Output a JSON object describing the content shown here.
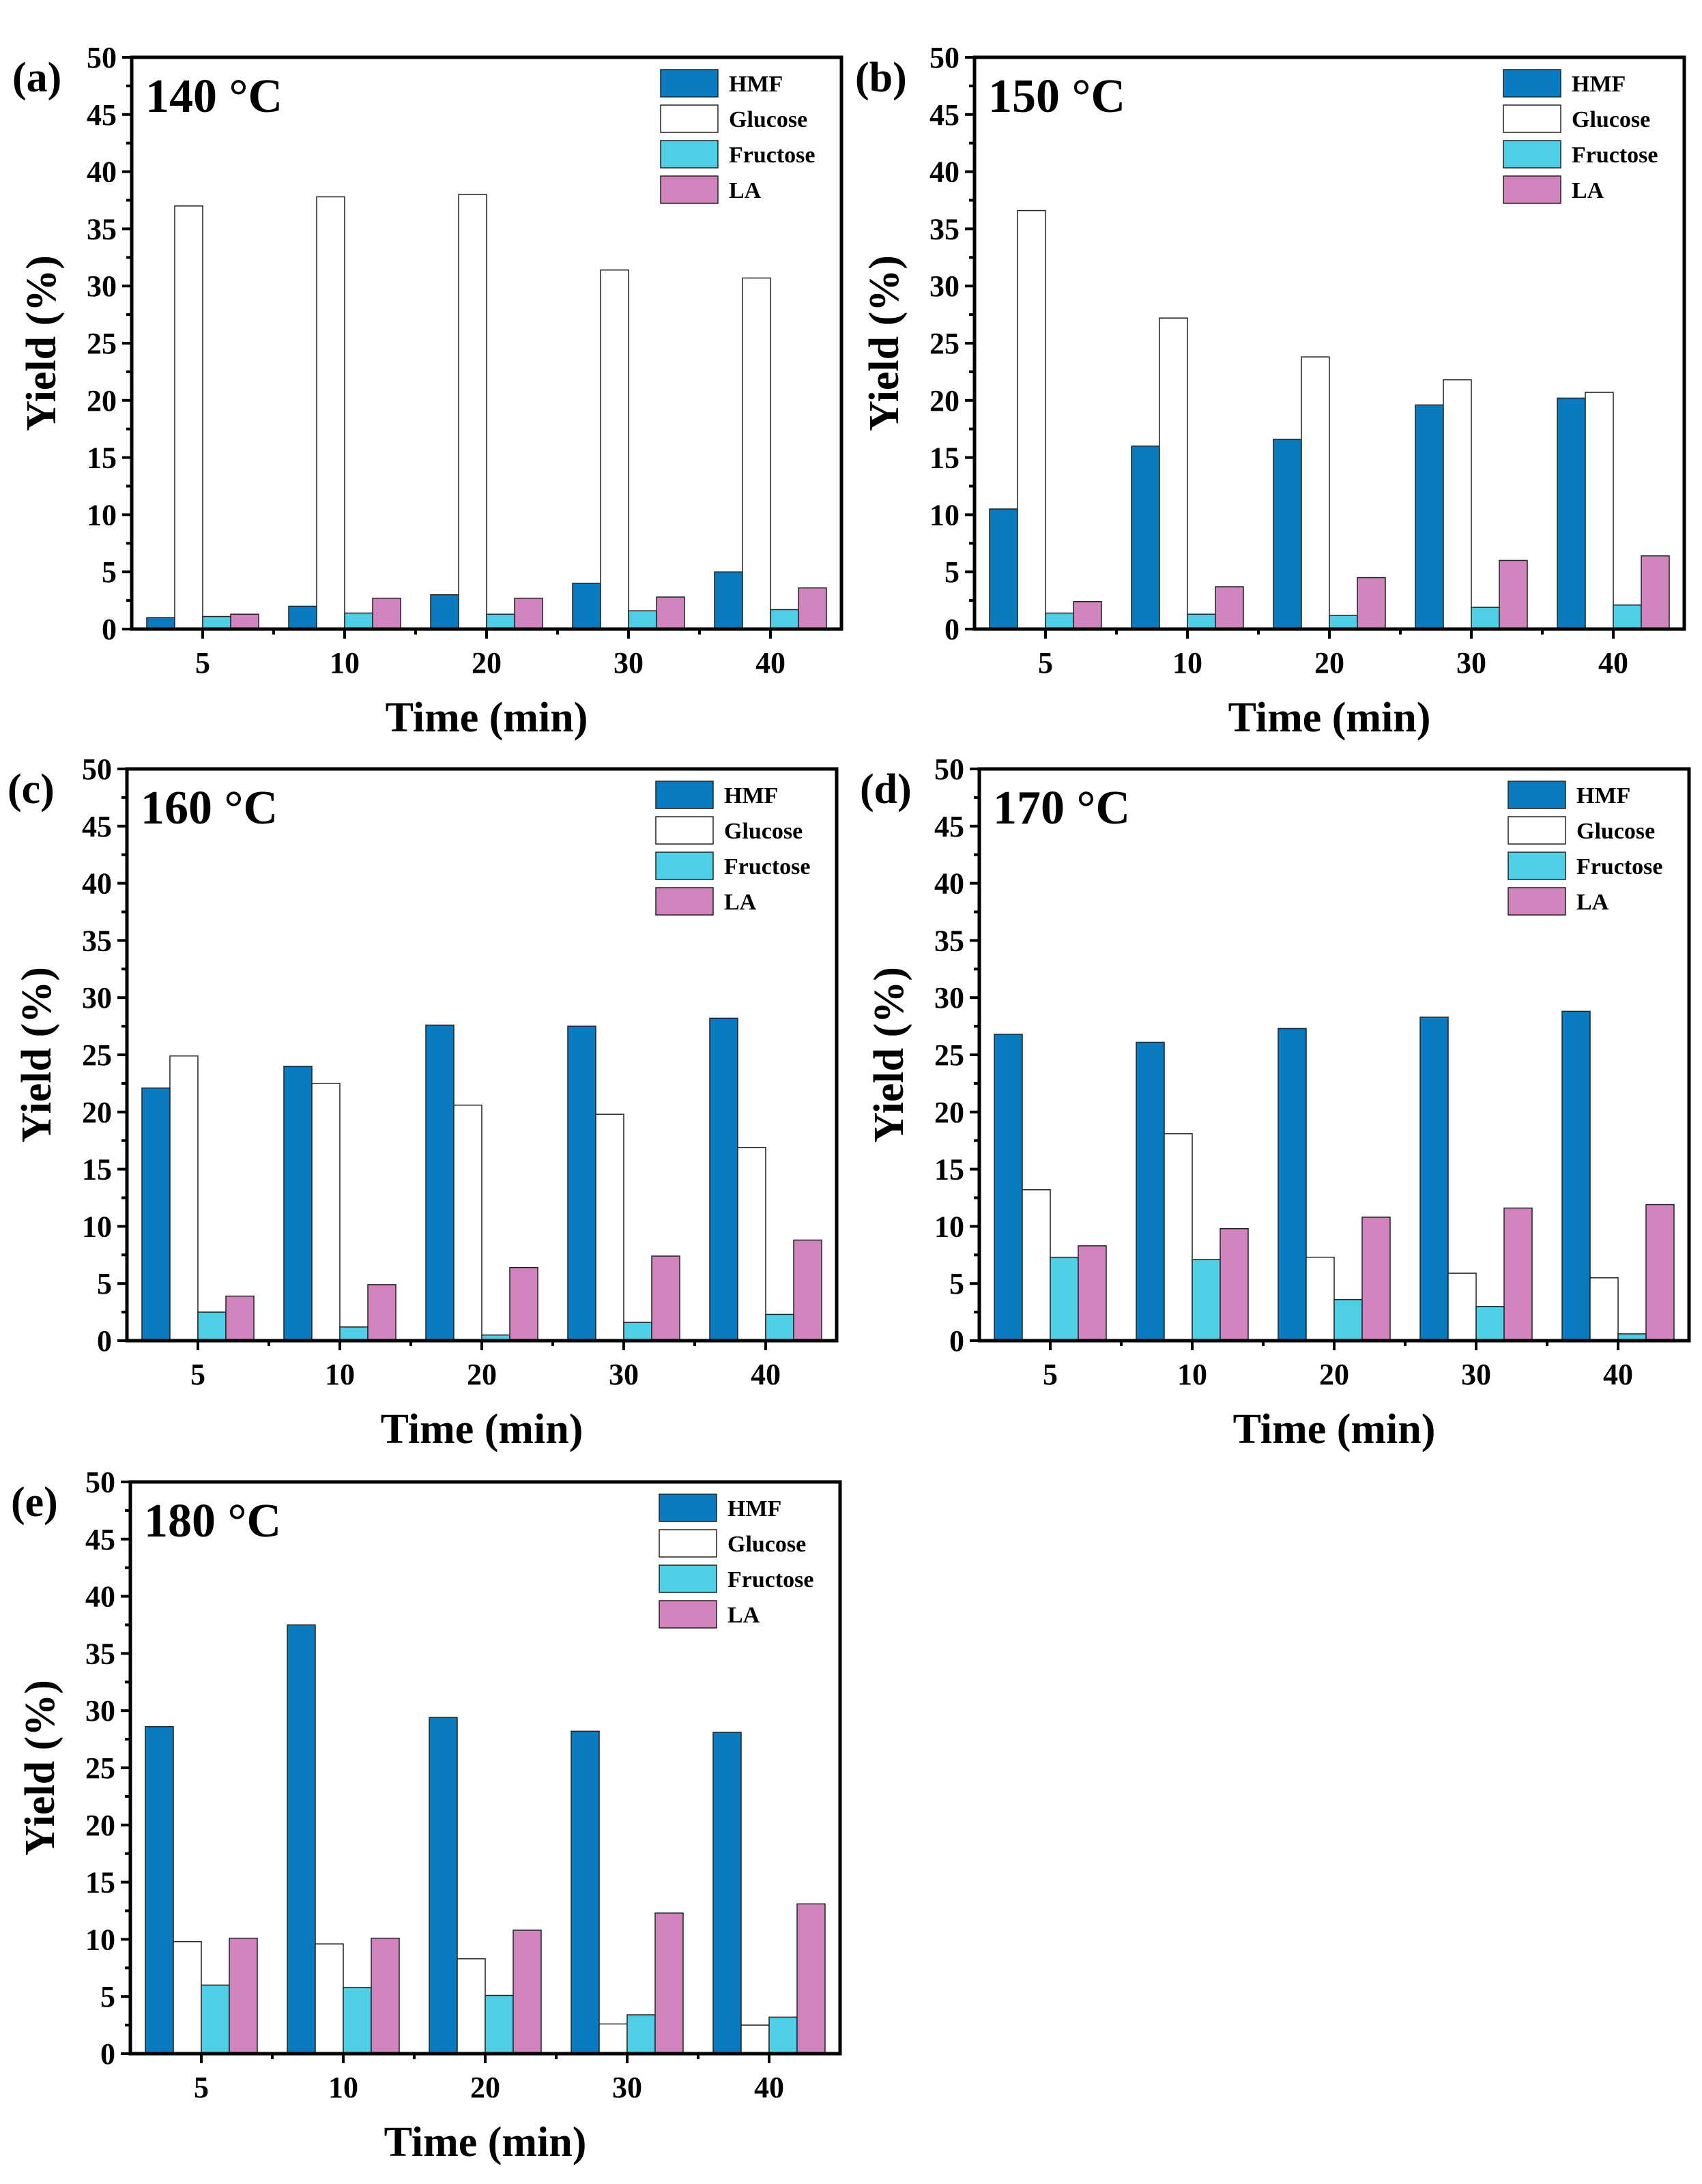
{
  "colors": {
    "HMF": "#0a7bc1",
    "Glucose": "#ffffff",
    "Fructose": "#4fcfe6",
    "LA": "#d183bd"
  },
  "chart_data": [
    {
      "type": "bar",
      "panel": "(a)",
      "title": "140 °C",
      "xlabel": "Time (min)",
      "ylabel": "Yield (%)",
      "ylim": [
        0,
        50
      ],
      "yticks": [
        "0",
        "5",
        "10",
        "15",
        "20",
        "25",
        "30",
        "35",
        "40",
        "45",
        "50"
      ],
      "categories": [
        "5",
        "10",
        "20",
        "30",
        "40"
      ],
      "legend": "top-right",
      "series": [
        {
          "name": "HMF",
          "values": [
            1.0,
            2.0,
            3.0,
            4.0,
            5.0
          ]
        },
        {
          "name": "Glucose",
          "values": [
            37.0,
            37.8,
            38.0,
            31.4,
            30.7
          ]
        },
        {
          "name": "Fructose",
          "values": [
            1.1,
            1.4,
            1.3,
            1.6,
            1.7
          ]
        },
        {
          "name": "LA",
          "values": [
            1.3,
            2.7,
            2.7,
            2.8,
            3.6
          ]
        }
      ]
    },
    {
      "type": "bar",
      "panel": "(b)",
      "title": "150 °C",
      "xlabel": "Time (min)",
      "ylabel": "Yield (%)",
      "ylim": [
        0,
        50
      ],
      "yticks": [
        "0",
        "5",
        "10",
        "15",
        "20",
        "25",
        "30",
        "35",
        "40",
        "45",
        "50"
      ],
      "categories": [
        "5",
        "10",
        "20",
        "30",
        "40"
      ],
      "legend": "top-right",
      "series": [
        {
          "name": "HMF",
          "values": [
            10.5,
            16.0,
            16.6,
            19.6,
            20.2
          ]
        },
        {
          "name": "Glucose",
          "values": [
            36.6,
            27.2,
            23.8,
            21.8,
            20.7
          ]
        },
        {
          "name": "Fructose",
          "values": [
            1.4,
            1.3,
            1.2,
            1.9,
            2.1
          ]
        },
        {
          "name": "LA",
          "values": [
            2.4,
            3.7,
            4.5,
            6.0,
            6.4
          ]
        }
      ]
    },
    {
      "type": "bar",
      "panel": "(c)",
      "title": "160 °C",
      "xlabel": "Time (min)",
      "ylabel": "Yield (%)",
      "ylim": [
        0,
        50
      ],
      "yticks": [
        "0",
        "5",
        "10",
        "15",
        "20",
        "25",
        "30",
        "35",
        "40",
        "45",
        "50"
      ],
      "categories": [
        "5",
        "10",
        "20",
        "30",
        "40"
      ],
      "legend": "top-right",
      "series": [
        {
          "name": "HMF",
          "values": [
            22.1,
            24.0,
            27.6,
            27.5,
            28.2
          ]
        },
        {
          "name": "Glucose",
          "values": [
            24.9,
            22.5,
            20.6,
            19.8,
            16.9
          ]
        },
        {
          "name": "Fructose",
          "values": [
            2.5,
            1.2,
            0.5,
            1.6,
            2.3
          ]
        },
        {
          "name": "LA",
          "values": [
            3.9,
            4.9,
            6.4,
            7.4,
            8.8
          ]
        }
      ]
    },
    {
      "type": "bar",
      "panel": "(d)",
      "title": "170 °C",
      "xlabel": "Time (min)",
      "ylabel": "Yield (%)",
      "ylim": [
        0,
        50
      ],
      "yticks": [
        "0",
        "5",
        "10",
        "15",
        "20",
        "25",
        "30",
        "35",
        "40",
        "45",
        "50"
      ],
      "categories": [
        "5",
        "10",
        "20",
        "30",
        "40"
      ],
      "legend": "top-right",
      "series": [
        {
          "name": "HMF",
          "values": [
            26.8,
            26.1,
            27.3,
            28.3,
            28.8
          ]
        },
        {
          "name": "Glucose",
          "values": [
            13.2,
            18.1,
            7.3,
            5.9,
            5.5
          ]
        },
        {
          "name": "Fructose",
          "values": [
            7.3,
            7.1,
            3.6,
            3.0,
            0.6
          ]
        },
        {
          "name": "LA",
          "values": [
            8.3,
            9.8,
            10.8,
            11.6,
            11.9
          ]
        }
      ]
    },
    {
      "type": "bar",
      "panel": "(e)",
      "title": "180 °C",
      "xlabel": "Time (min)",
      "ylabel": "Yield (%)",
      "ylim": [
        0,
        50
      ],
      "yticks": [
        "0",
        "5",
        "10",
        "15",
        "20",
        "25",
        "30",
        "35",
        "40",
        "45",
        "50"
      ],
      "categories": [
        "5",
        "10",
        "20",
        "30",
        "40"
      ],
      "legend": "top-right",
      "series": [
        {
          "name": "HMF",
          "values": [
            28.6,
            37.5,
            29.4,
            28.2,
            28.1
          ]
        },
        {
          "name": "Glucose",
          "values": [
            9.8,
            9.6,
            8.3,
            2.6,
            2.5
          ]
        },
        {
          "name": "Fructose",
          "values": [
            6.0,
            5.8,
            5.1,
            3.4,
            3.2
          ]
        },
        {
          "name": "LA",
          "values": [
            10.1,
            10.1,
            10.8,
            12.3,
            13.1
          ]
        }
      ]
    }
  ]
}
